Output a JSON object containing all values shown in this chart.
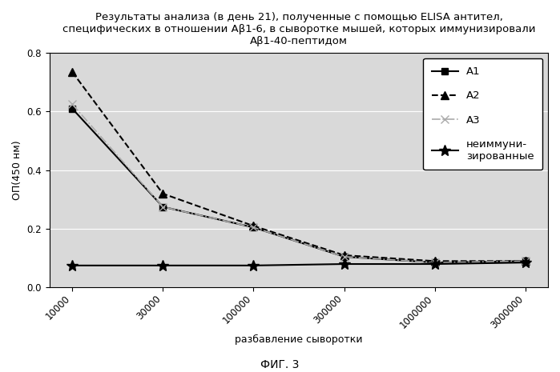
{
  "title": "Результаты анализа (в день 21), полученные с помощью ELISA антител,\nспецифических в отношении Аβ1-6, в сыворотке мышей, которых иммунизировали\nАβ1-40-пептидом",
  "xlabel": "разбавление сыворотки",
  "ylabel": "ОП(450 нм)",
  "figcaption": "ФИГ. 3",
  "x_labels": [
    "10000",
    "30000",
    "100000",
    "300000",
    "1000000",
    "3000000"
  ],
  "series": [
    {
      "label": "А1",
      "values": [
        0.61,
        0.275,
        0.205,
        0.105,
        0.085,
        0.09
      ],
      "color": "#000000",
      "linestyle": "-",
      "marker": "s",
      "linewidth": 1.5,
      "markersize": 6
    },
    {
      "label": "А2",
      "values": [
        0.735,
        0.32,
        0.21,
        0.11,
        0.09,
        0.09
      ],
      "color": "#000000",
      "linestyle": "--",
      "marker": "^",
      "linewidth": 1.5,
      "markersize": 7
    },
    {
      "label": "А3",
      "values": [
        0.625,
        0.275,
        0.205,
        0.105,
        0.085,
        0.09
      ],
      "color": "#aaaaaa",
      "linestyle": "-.",
      "marker": "x",
      "linewidth": 1.2,
      "markersize": 7
    },
    {
      "label": "неиммуни-\nзированные",
      "values": [
        0.075,
        0.075,
        0.075,
        0.08,
        0.08,
        0.085
      ],
      "color": "#000000",
      "linestyle": "-",
      "marker": "*",
      "linewidth": 1.5,
      "markersize": 10
    }
  ],
  "ylim": [
    0,
    0.8
  ],
  "yticks": [
    0,
    0.2,
    0.4,
    0.6,
    0.8
  ],
  "plot_bg_color": "#d9d9d9",
  "fig_bg_color": "#ffffff",
  "title_fontsize": 9.5,
  "axis_label_fontsize": 9,
  "tick_fontsize": 8.5,
  "legend_fontsize": 9.5,
  "figcaption_fontsize": 10
}
